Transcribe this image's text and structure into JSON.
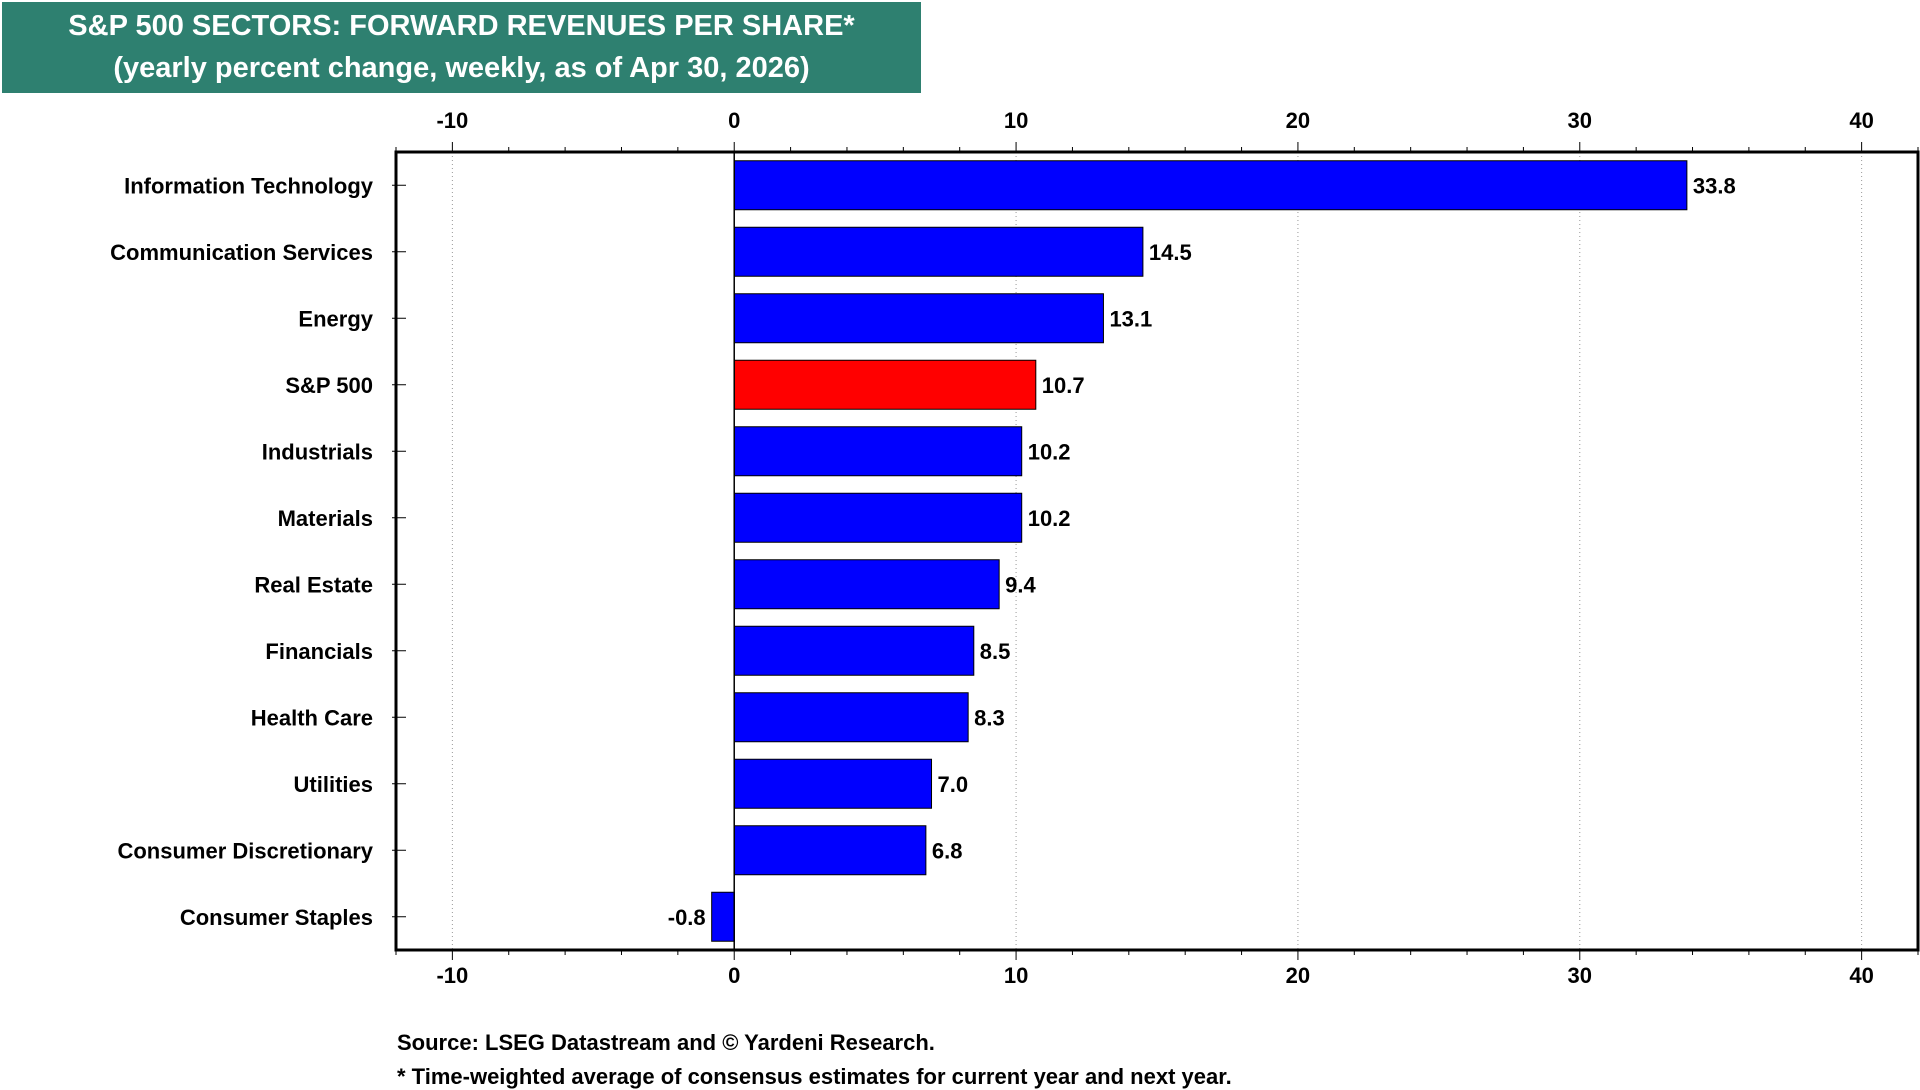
{
  "title": {
    "line1": "S&P 500 SECTORS: FORWARD REVENUES PER SHARE*",
    "line2": "(yearly percent change, weekly, as of Apr 30, 2026)"
  },
  "colors": {
    "title_bg": "#2e8070",
    "bar": "#0000ff",
    "bar_highlight": "#ff0000"
  },
  "chart_data": {
    "type": "bar",
    "orientation": "horizontal",
    "categories": [
      "Information Technology",
      "Communication Services",
      "Energy",
      "S&P 500",
      "Industrials",
      "Materials",
      "Real Estate",
      "Financials",
      "Health Care",
      "Utilities",
      "Consumer Discretionary",
      "Consumer Staples"
    ],
    "values": [
      33.8,
      14.5,
      13.1,
      10.7,
      10.2,
      10.2,
      9.4,
      8.5,
      8.3,
      7.0,
      6.8,
      -0.8
    ],
    "value_labels": [
      "33.8",
      "14.5",
      "13.1",
      "10.7",
      "10.2",
      "10.2",
      "9.4",
      "8.5",
      "8.3",
      "7.0",
      "6.8",
      "-0.8"
    ],
    "highlight": "S&P 500",
    "xlim": [
      -12,
      42
    ],
    "xticks": [
      -10,
      0,
      10,
      20,
      30,
      40
    ],
    "xtick_labels": [
      "-10",
      "0",
      "10",
      "20",
      "30",
      "40"
    ],
    "grid": "vertical dotted",
    "xlabel": "",
    "ylabel": ""
  },
  "footnotes": {
    "source": "Source: LSEG Datastream and © Yardeni Research.",
    "note": "* Time-weighted average of consensus estimates for current year and next year."
  }
}
